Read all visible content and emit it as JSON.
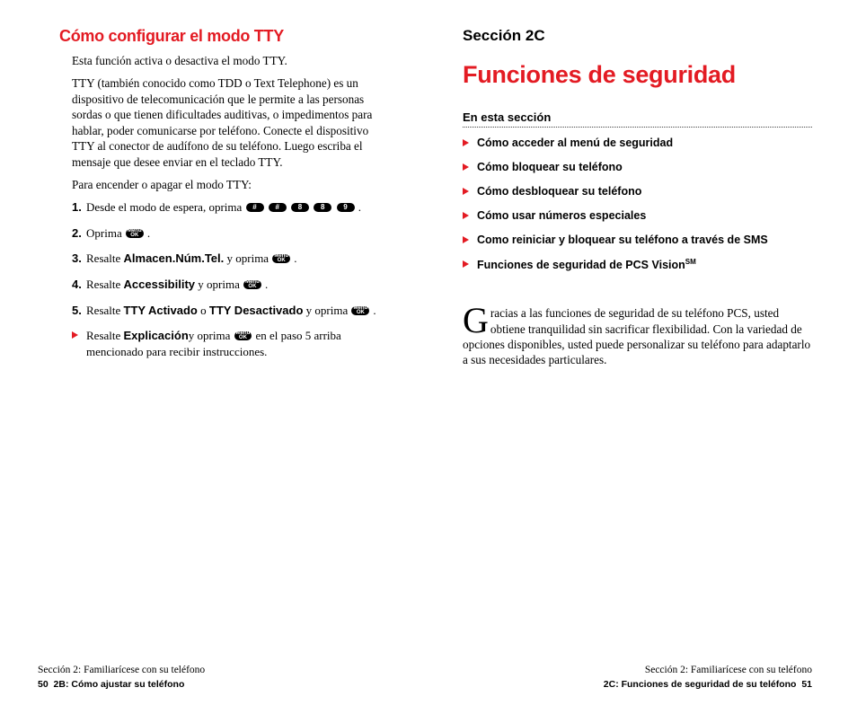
{
  "colors": {
    "accent": "#e31b23",
    "text": "#000000",
    "bg": "#ffffff"
  },
  "left": {
    "heading": "Cómo configurar el modo TTY",
    "para1": "Esta función activa o desactiva el modo TTY.",
    "para2": "TTY (también conocido como TDD o Text Telephone) es un dispositivo de telecomunicación que le permite a las personas sordas o que tienen dificultades auditivas, o impedimentos para hablar, poder comunicarse por teléfono. Conecte el dispositivo TTY al conector de audífono de su teléfono. Luego escriba el mensaje que desee enviar en el teclado TTY.",
    "para3": "Para encender o apagar el modo TTY:",
    "steps": {
      "s1_a": "Desde el modo de espera, oprima ",
      "keys1": [
        "#",
        "#",
        "8",
        "8",
        "9"
      ],
      "s2_a": "Oprima ",
      "s3_a": "Resalte ",
      "s3_b": "Almacen.Núm.Tel.",
      "s3_c": " y oprima ",
      "s4_a": "Resalte ",
      "s4_b": "Accessibility",
      "s4_c": " y oprima ",
      "s5_a": "Resalte ",
      "s5_b": "TTY Activado",
      "s5_c": " o ",
      "s5_d": "TTY Desactivado",
      "s5_e": " y oprima ",
      "sub_a": "Resalte ",
      "sub_b": "Explicación",
      "sub_c": "y oprima ",
      "sub_d": " en el paso 5 arriba mencionado para recibir instrucciones."
    },
    "menu_key": "Menu OK",
    "footer_line1": "Sección 2: Familiarícese con su teléfono",
    "footer_line2": "2B: Cómo ajustar su teléfono",
    "page_num": "50"
  },
  "right": {
    "section_label": "Sección 2C",
    "title": "Funciones de seguridad",
    "subhead": "En esta sección",
    "toc": [
      "Cómo acceder al menú de seguridad",
      "Cómo bloquear su teléfono",
      "Cómo desbloquear su teléfono",
      "Cómo usar números especiales",
      "Como reiniciar y bloquear su teléfono a través de SMS",
      "Funciones de seguridad de PCS Vision"
    ],
    "sm": "SM",
    "intro": "racias a las funciones de seguridad de su teléfono PCS, usted obtiene tranquilidad sin sacrificar flexibilidad. Con la variedad de opciones disponibles, usted puede personalizar su teléfono para adaptarlo a sus necesidades particulares.",
    "dropcap": "G",
    "footer_line1": "Sección 2: Familiarícese con su teléfono",
    "footer_line2": "2C: Funciones de seguridad de su teléfono",
    "page_num": "51"
  }
}
